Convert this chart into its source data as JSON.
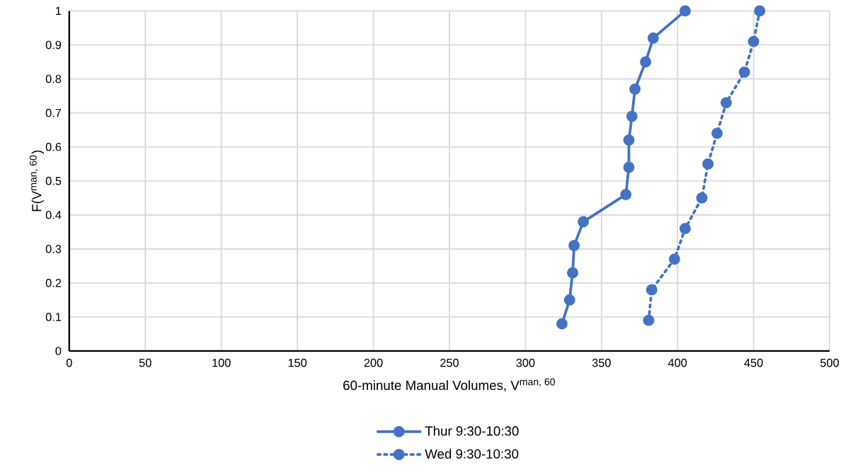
{
  "chart_data": {
    "type": "line",
    "xlabel": "60-minute Manual Volumes, V$^{man, 60}$",
    "ylabel": "F(V$^{man, 60}$)",
    "xlim": [
      0,
      500
    ],
    "xticks": [
      0,
      50,
      100,
      150,
      200,
      250,
      300,
      350,
      400,
      450,
      500
    ],
    "ylim": [
      0,
      1
    ],
    "yticks": [
      0,
      0.1,
      0.2,
      0.3,
      0.4,
      0.5,
      0.6,
      0.7,
      0.8,
      0.9,
      1
    ],
    "grid": true,
    "legend": "bottom",
    "marker": "circle",
    "series": [
      {
        "name": "Thur 9:30-10:30",
        "color": "#4472c4",
        "line_style": "solid",
        "x": [
          324,
          329,
          331,
          332,
          338,
          366,
          368,
          368,
          370,
          372,
          379,
          384,
          405
        ],
        "values": [
          0.08,
          0.15,
          0.23,
          0.31,
          0.38,
          0.46,
          0.54,
          0.62,
          0.69,
          0.77,
          0.85,
          0.92,
          1.0
        ]
      },
      {
        "name": "Wed 9:30-10:30",
        "color": "#4472c4",
        "line_style": "dotted",
        "x": [
          381,
          383,
          398,
          405,
          416,
          420,
          426,
          432,
          444,
          450,
          454
        ],
        "values": [
          0.09,
          0.18,
          0.27,
          0.36,
          0.45,
          0.55,
          0.64,
          0.73,
          0.82,
          0.91,
          1.0
        ]
      }
    ]
  }
}
